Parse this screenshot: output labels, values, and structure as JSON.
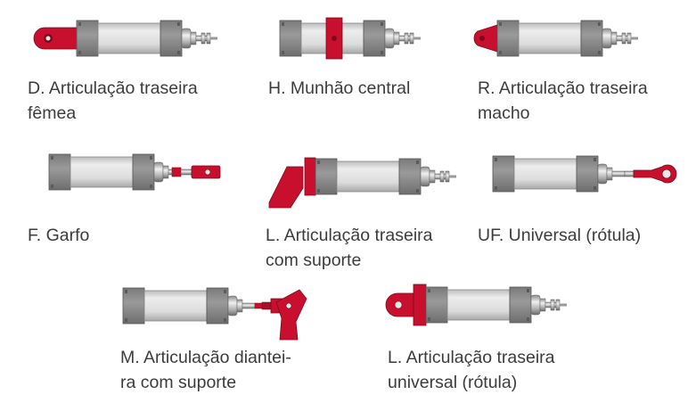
{
  "colors": {
    "accent_red": "#c8102e",
    "endcap_gray": "#8c8c8c",
    "barrel_gray": "#d9d9d9",
    "text": "#3c3c3c"
  },
  "mountings": [
    {
      "line1": "D. Articulação traseira",
      "line2": "fêmea"
    },
    {
      "line1": "H. Munhão central",
      "line2": ""
    },
    {
      "line1": "R. Articulação traseira",
      "line2": "macho"
    },
    {
      "line1": "F. Garfo",
      "line2": ""
    },
    {
      "line1": "L. Articulação traseira",
      "line2": "com suporte"
    },
    {
      "line1": "UF. Universal (rótula)",
      "line2": ""
    },
    {
      "line1": "M. Articulação diantei-",
      "line2": "ra com suporte"
    },
    {
      "line1": "L. Articulação traseira",
      "line2": "universal (rótula)"
    }
  ]
}
